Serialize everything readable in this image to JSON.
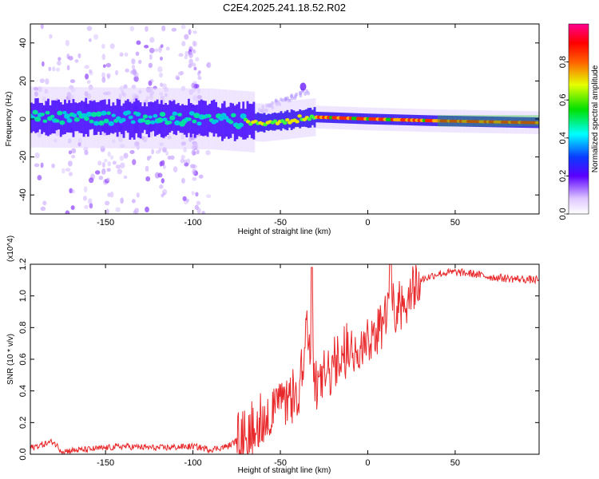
{
  "title": "C2E4.2025.241.18.52.R02",
  "colors": {
    "snr_line": "#e8282a",
    "axis": "#000000"
  },
  "chart_data": [
    {
      "type": "heatmap",
      "xlabel": "Height of straight line (km)",
      "ylabel": "Frequency (Hz)",
      "xlim": [
        -193,
        98
      ],
      "ylim": [
        -50,
        50
      ],
      "xticks": [
        -150,
        -100,
        -50,
        0,
        50
      ],
      "yticks": [
        -40,
        -20,
        0,
        20,
        40
      ],
      "colorbar": {
        "label": "Normalized spectral amplitude",
        "range": [
          0.0,
          1.0
        ],
        "ticks": [
          0.0,
          0.2,
          0.4,
          0.6,
          0.8
        ],
        "colormap": "rainbow"
      },
      "center_frequency": [
        {
          "x": -193,
          "y": 1
        },
        {
          "x": -90,
          "y": 0
        },
        {
          "x": -60,
          "y": -2
        },
        {
          "x": -40,
          "y": 0
        },
        {
          "x": -30,
          "y": 1
        },
        {
          "x": 0,
          "y": 0
        },
        {
          "x": 40,
          "y": -1
        },
        {
          "x": 98,
          "y": -2
        }
      ]
    },
    {
      "type": "line",
      "xlabel": "Height of straight line (km)",
      "ylabel": "SNR (10 * v/v)",
      "y_scale_label": "(x10^4)",
      "xlim": [
        -193,
        98
      ],
      "ylim": [
        0.0,
        1.2
      ],
      "xticks": [
        -150,
        -100,
        -50,
        0,
        50
      ],
      "yticks": [
        0.0,
        0.2,
        0.4,
        0.6,
        0.8,
        1.0,
        1.2
      ],
      "series": [
        {
          "points": [
            [
              -193,
              0.04
            ],
            [
              -180,
              0.08
            ],
            [
              -175,
              0.02
            ],
            [
              -160,
              0.03
            ],
            [
              -140,
              0.05
            ],
            [
              -120,
              0.04
            ],
            [
              -100,
              0.05
            ],
            [
              -90,
              0.03
            ],
            [
              -80,
              0.05
            ],
            [
              -70,
              0.12
            ],
            [
              -60,
              0.22
            ],
            [
              -50,
              0.3
            ],
            [
              -40,
              0.36
            ],
            [
              -35,
              0.8
            ],
            [
              -30,
              0.4
            ],
            [
              -20,
              0.55
            ],
            [
              -10,
              0.65
            ],
            [
              0,
              0.72
            ],
            [
              10,
              0.85
            ],
            [
              20,
              0.98
            ],
            [
              30,
              1.1
            ],
            [
              40,
              1.14
            ],
            [
              50,
              1.15
            ],
            [
              60,
              1.14
            ],
            [
              70,
              1.12
            ],
            [
              80,
              1.11
            ],
            [
              98,
              1.1
            ]
          ]
        }
      ]
    }
  ]
}
